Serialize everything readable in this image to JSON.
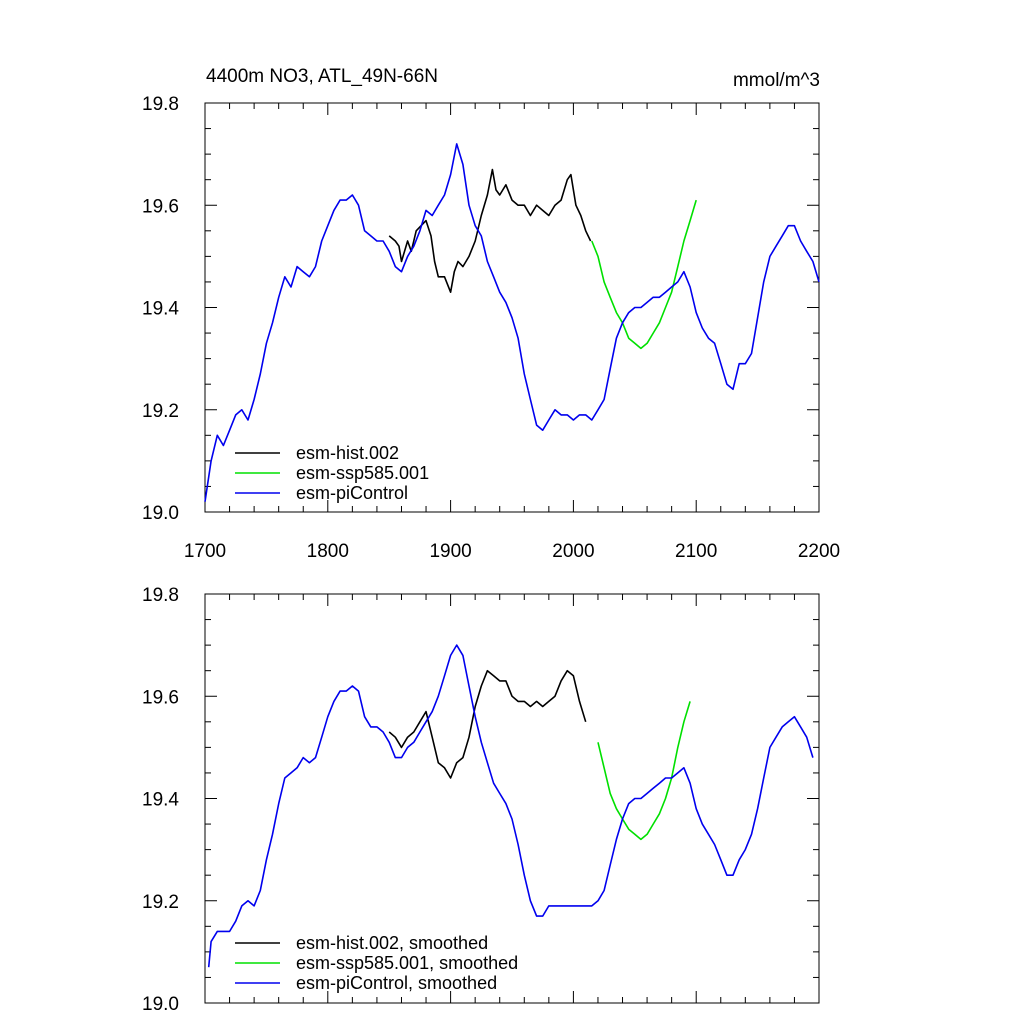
{
  "chart_data": [
    {
      "type": "line",
      "title": "4400m NO3, ATL_49N-66N",
      "units": "mmol/m^3",
      "xlabel": "",
      "ylabel": "",
      "xlim": [
        1700,
        2200
      ],
      "ylim": [
        19.0,
        19.8
      ],
      "xticks": [
        1700,
        1800,
        1900,
        2000,
        2100,
        2200
      ],
      "xtick_labels": [
        "1700",
        "1800",
        "1900",
        "2000",
        "2100",
        "2200"
      ],
      "yticks": [
        19.0,
        19.2,
        19.4,
        19.6,
        19.8
      ],
      "ytick_labels": [
        "19.0",
        "19.2",
        "19.4",
        "19.6",
        "19.8"
      ],
      "grid": false,
      "legend_position": "bottom-left",
      "series": [
        {
          "name": "esm-hist.002",
          "color": "#000000",
          "x": [
            1850,
            1855,
            1858,
            1860,
            1865,
            1868,
            1872,
            1876,
            1880,
            1884,
            1887,
            1890,
            1895,
            1900,
            1903,
            1906,
            1910,
            1915,
            1920,
            1925,
            1930,
            1934,
            1937,
            1940,
            1945,
            1950,
            1955,
            1960,
            1965,
            1970,
            1975,
            1980,
            1985,
            1990,
            1995,
            1998,
            2002,
            2006,
            2010,
            2014
          ],
          "y": [
            19.54,
            19.53,
            19.52,
            19.49,
            19.53,
            19.51,
            19.55,
            19.56,
            19.57,
            19.54,
            19.49,
            19.46,
            19.46,
            19.43,
            19.47,
            19.49,
            19.48,
            19.5,
            19.53,
            19.58,
            19.62,
            19.67,
            19.63,
            19.62,
            19.64,
            19.61,
            19.6,
            19.6,
            19.58,
            19.6,
            19.59,
            19.58,
            19.6,
            19.61,
            19.65,
            19.66,
            19.6,
            19.58,
            19.55,
            19.53
          ]
        },
        {
          "name": "esm-ssp585.001",
          "color": "#00e000",
          "x": [
            2015,
            2020,
            2025,
            2030,
            2035,
            2040,
            2045,
            2050,
            2055,
            2060,
            2065,
            2070,
            2075,
            2080,
            2085,
            2090,
            2095,
            2100
          ],
          "y": [
            19.53,
            19.5,
            19.45,
            19.42,
            19.39,
            19.37,
            19.34,
            19.33,
            19.32,
            19.33,
            19.35,
            19.37,
            19.4,
            19.43,
            19.48,
            19.53,
            19.57,
            19.61
          ]
        },
        {
          "name": "esm-piControl",
          "color": "#0000ee",
          "x": [
            1700,
            1705,
            1710,
            1715,
            1720,
            1725,
            1730,
            1735,
            1740,
            1745,
            1750,
            1755,
            1760,
            1765,
            1770,
            1775,
            1780,
            1785,
            1790,
            1795,
            1800,
            1805,
            1810,
            1815,
            1820,
            1825,
            1830,
            1835,
            1840,
            1845,
            1850,
            1855,
            1860,
            1865,
            1870,
            1875,
            1880,
            1885,
            1890,
            1895,
            1900,
            1905,
            1910,
            1915,
            1920,
            1925,
            1930,
            1935,
            1940,
            1945,
            1950,
            1955,
            1960,
            1965,
            1970,
            1975,
            1980,
            1985,
            1990,
            1995,
            2000,
            2005,
            2010,
            2015,
            2020,
            2025,
            2030,
            2035,
            2040,
            2045,
            2050,
            2055,
            2060,
            2065,
            2070,
            2075,
            2080,
            2085,
            2090,
            2095,
            2100,
            2105,
            2110,
            2115,
            2120,
            2125,
            2130,
            2135,
            2140,
            2145,
            2150,
            2155,
            2160,
            2165,
            2170,
            2175,
            2180,
            2185,
            2190,
            2195,
            2200
          ],
          "y": [
            19.02,
            19.1,
            19.15,
            19.13,
            19.16,
            19.19,
            19.2,
            19.18,
            19.22,
            19.27,
            19.33,
            19.37,
            19.42,
            19.46,
            19.44,
            19.48,
            19.47,
            19.46,
            19.48,
            19.53,
            19.56,
            19.59,
            19.61,
            19.61,
            19.62,
            19.6,
            19.55,
            19.54,
            19.53,
            19.53,
            19.51,
            19.48,
            19.47,
            19.5,
            19.52,
            19.55,
            19.59,
            19.58,
            19.6,
            19.62,
            19.66,
            19.72,
            19.68,
            19.6,
            19.56,
            19.54,
            19.49,
            19.46,
            19.43,
            19.41,
            19.38,
            19.34,
            19.27,
            19.22,
            19.17,
            19.16,
            19.18,
            19.2,
            19.19,
            19.19,
            19.18,
            19.19,
            19.19,
            19.18,
            19.2,
            19.22,
            19.28,
            19.34,
            19.37,
            19.39,
            19.4,
            19.4,
            19.41,
            19.42,
            19.42,
            19.43,
            19.44,
            19.45,
            19.47,
            19.44,
            19.39,
            19.36,
            19.34,
            19.33,
            19.29,
            19.25,
            19.24,
            19.29,
            19.29,
            19.31,
            19.38,
            19.45,
            19.5,
            19.52,
            19.54,
            19.56,
            19.56,
            19.53,
            19.51,
            19.49,
            19.45
          ]
        }
      ]
    },
    {
      "type": "line",
      "title": "",
      "xlabel": "",
      "ylabel": "",
      "xlim": [
        1700,
        2200
      ],
      "ylim": [
        19.0,
        19.8
      ],
      "xticks": [
        1700,
        1800,
        1900,
        2000,
        2100,
        2200
      ],
      "yticks": [
        19.0,
        19.2,
        19.4,
        19.6,
        19.8
      ],
      "ytick_labels": [
        "19.0",
        "19.2",
        "19.4",
        "19.6",
        "19.8"
      ],
      "grid": false,
      "legend_position": "bottom-left",
      "series": [
        {
          "name": "esm-hist.002, smoothed",
          "color": "#000000",
          "x": [
            1850,
            1855,
            1860,
            1865,
            1870,
            1875,
            1880,
            1885,
            1890,
            1895,
            1900,
            1905,
            1910,
            1915,
            1920,
            1925,
            1930,
            1935,
            1940,
            1945,
            1950,
            1955,
            1960,
            1965,
            1970,
            1975,
            1980,
            1985,
            1990,
            1995,
            2000,
            2005,
            2010
          ],
          "y": [
            19.53,
            19.52,
            19.5,
            19.52,
            19.53,
            19.55,
            19.57,
            19.52,
            19.47,
            19.46,
            19.44,
            19.47,
            19.48,
            19.52,
            19.58,
            19.62,
            19.65,
            19.64,
            19.63,
            19.63,
            19.6,
            19.59,
            19.59,
            19.58,
            19.59,
            19.58,
            19.59,
            19.6,
            19.63,
            19.65,
            19.64,
            19.59,
            19.55
          ]
        },
        {
          "name": "esm-ssp585.001, smoothed",
          "color": "#00e000",
          "x": [
            2020,
            2025,
            2030,
            2035,
            2040,
            2045,
            2050,
            2055,
            2060,
            2065,
            2070,
            2075,
            2080,
            2085,
            2090,
            2095
          ],
          "y": [
            19.51,
            19.46,
            19.41,
            19.38,
            19.36,
            19.34,
            19.33,
            19.32,
            19.33,
            19.35,
            19.37,
            19.4,
            19.44,
            19.5,
            19.55,
            19.59
          ]
        },
        {
          "name": "esm-piControl, smoothed",
          "color": "#0000ee",
          "x": [
            1703,
            1705,
            1710,
            1715,
            1720,
            1725,
            1730,
            1735,
            1740,
            1745,
            1750,
            1755,
            1760,
            1765,
            1770,
            1775,
            1780,
            1785,
            1790,
            1795,
            1800,
            1805,
            1810,
            1815,
            1820,
            1825,
            1830,
            1835,
            1840,
            1845,
            1850,
            1855,
            1860,
            1865,
            1870,
            1875,
            1880,
            1885,
            1890,
            1895,
            1900,
            1905,
            1910,
            1915,
            1920,
            1925,
            1930,
            1935,
            1940,
            1945,
            1950,
            1955,
            1960,
            1965,
            1970,
            1975,
            1980,
            1985,
            1990,
            1995,
            2000,
            2005,
            2010,
            2015,
            2020,
            2025,
            2030,
            2035,
            2040,
            2045,
            2050,
            2055,
            2060,
            2065,
            2070,
            2075,
            2080,
            2085,
            2090,
            2095,
            2100,
            2105,
            2110,
            2115,
            2120,
            2125,
            2130,
            2135,
            2140,
            2145,
            2150,
            2155,
            2160,
            2165,
            2170,
            2175,
            2180,
            2185,
            2190,
            2195
          ],
          "y": [
            19.07,
            19.12,
            19.14,
            19.14,
            19.14,
            19.16,
            19.19,
            19.2,
            19.19,
            19.22,
            19.28,
            19.33,
            19.39,
            19.44,
            19.45,
            19.46,
            19.48,
            19.47,
            19.48,
            19.52,
            19.56,
            19.59,
            19.61,
            19.61,
            19.62,
            19.61,
            19.56,
            19.54,
            19.54,
            19.53,
            19.51,
            19.48,
            19.48,
            19.5,
            19.51,
            19.53,
            19.55,
            19.57,
            19.6,
            19.64,
            19.68,
            19.7,
            19.68,
            19.62,
            19.56,
            19.51,
            19.47,
            19.43,
            19.41,
            19.39,
            19.36,
            19.31,
            19.25,
            19.2,
            19.17,
            19.17,
            19.19,
            19.19,
            19.19,
            19.19,
            19.19,
            19.19,
            19.19,
            19.19,
            19.2,
            19.22,
            19.27,
            19.32,
            19.36,
            19.39,
            19.4,
            19.4,
            19.41,
            19.42,
            19.43,
            19.44,
            19.44,
            19.45,
            19.46,
            19.43,
            19.38,
            19.35,
            19.33,
            19.31,
            19.28,
            19.25,
            19.25,
            19.28,
            19.3,
            19.33,
            19.38,
            19.44,
            19.5,
            19.52,
            19.54,
            19.55,
            19.56,
            19.54,
            19.52,
            19.48
          ]
        }
      ]
    }
  ]
}
